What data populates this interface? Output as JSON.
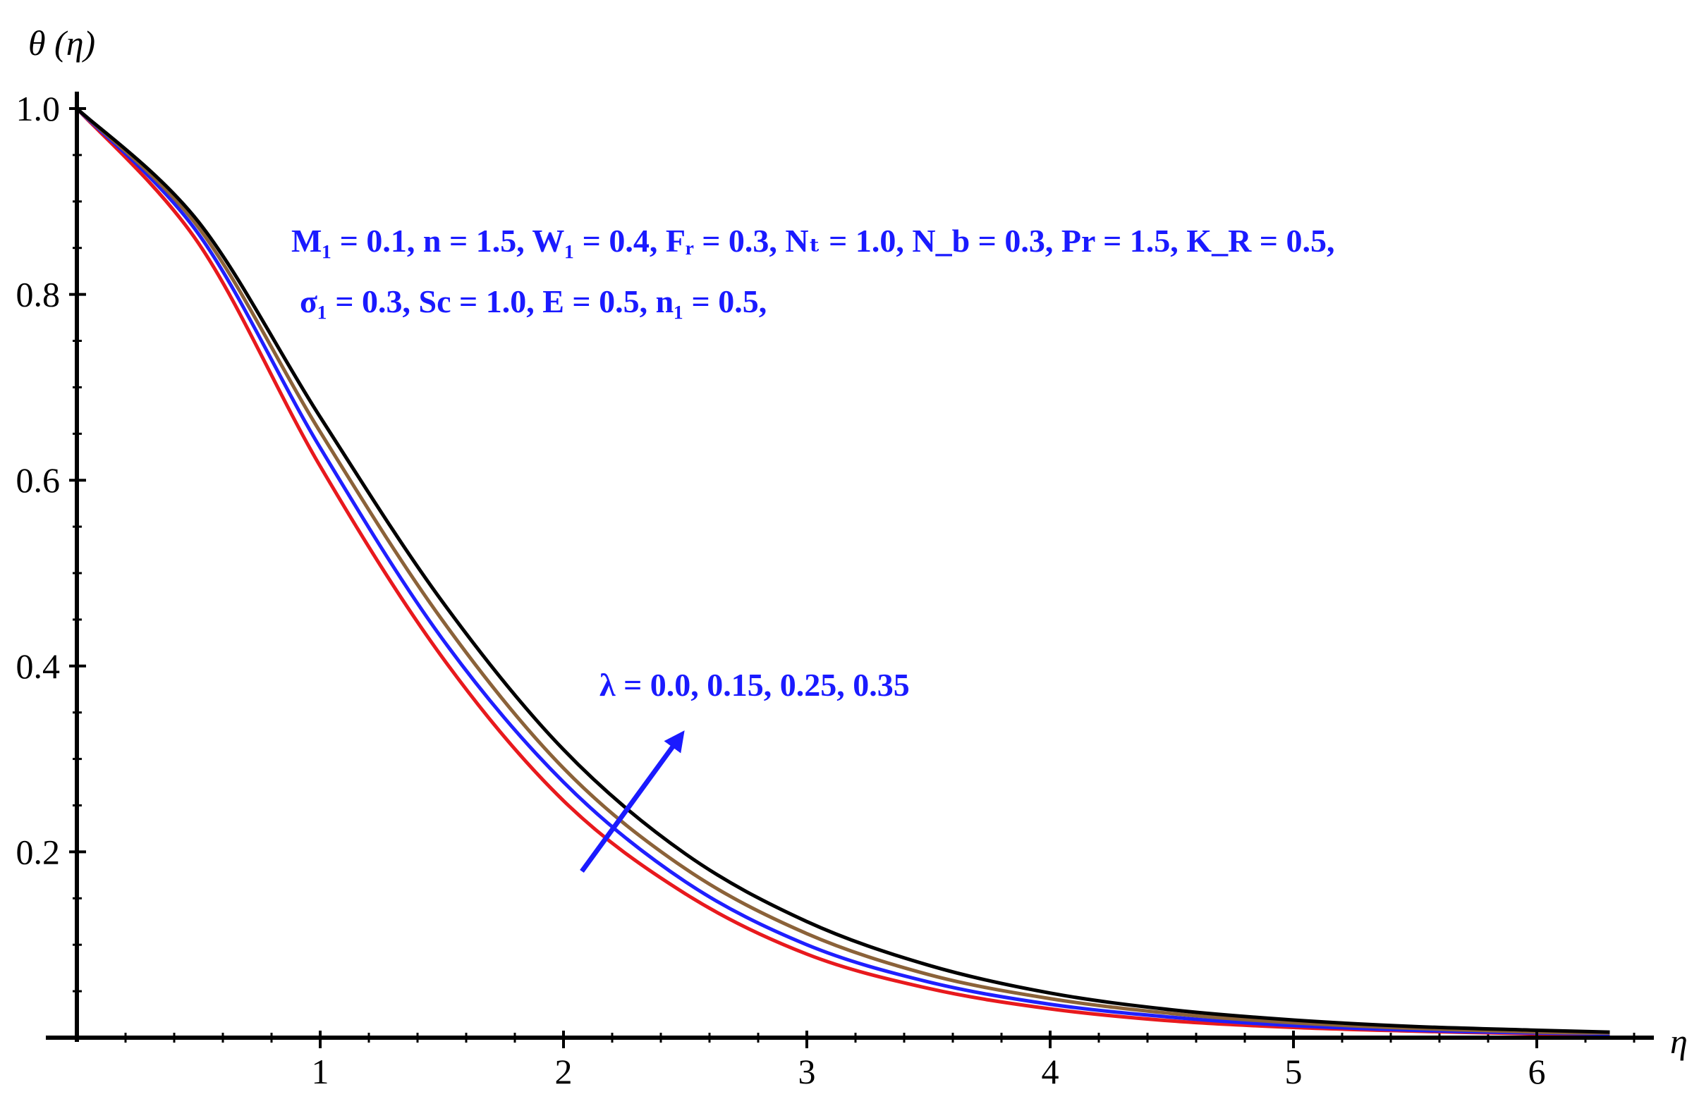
{
  "chart_data": {
    "type": "line",
    "title": "",
    "xlabel": "η",
    "ylabel": "θ (η)",
    "xlim": [
      0,
      6.45
    ],
    "ylim": [
      0,
      1.03
    ],
    "x_ticks": [
      {
        "value": 1,
        "label": "1"
      },
      {
        "value": 2,
        "label": "2"
      },
      {
        "value": 3,
        "label": "3"
      },
      {
        "value": 4,
        "label": "4"
      },
      {
        "value": 5,
        "label": "5"
      },
      {
        "value": 6,
        "label": "6"
      }
    ],
    "y_ticks": [
      {
        "value": 0.2,
        "label": "0.2"
      },
      {
        "value": 0.4,
        "label": "0.4"
      },
      {
        "value": 0.6,
        "label": "0.6"
      },
      {
        "value": 0.8,
        "label": "0.8"
      },
      {
        "value": 1.0,
        "label": "1.0"
      }
    ],
    "grid": false,
    "legend": "none",
    "series": [
      {
        "color": "#e8191d",
        "x": [
          0,
          0.5,
          1,
          1.5,
          2,
          2.5,
          3,
          3.5,
          4,
          4.5,
          5,
          5.5,
          6,
          6.3
        ],
        "y": [
          1.0,
          0.855,
          0.615,
          0.41,
          0.255,
          0.155,
          0.09,
          0.053,
          0.031,
          0.018,
          0.011,
          0.007,
          0.004,
          0.003
        ]
      },
      {
        "color": "#1f1fff",
        "x": [
          0,
          0.5,
          1,
          1.5,
          2,
          2.5,
          3,
          3.5,
          4,
          4.5,
          5,
          5.5,
          6,
          6.3
        ],
        "y": [
          1.0,
          0.865,
          0.635,
          0.43,
          0.275,
          0.168,
          0.1,
          0.06,
          0.036,
          0.022,
          0.013,
          0.008,
          0.005,
          0.004
        ]
      },
      {
        "color": "#8b6239",
        "x": [
          0,
          0.5,
          1,
          1.5,
          2,
          2.5,
          3,
          3.5,
          4,
          4.5,
          5,
          5.5,
          6,
          6.3
        ],
        "y": [
          1.0,
          0.872,
          0.652,
          0.45,
          0.29,
          0.182,
          0.112,
          0.068,
          0.042,
          0.026,
          0.016,
          0.01,
          0.006,
          0.005
        ]
      },
      {
        "color": "#000000",
        "x": [
          0,
          0.5,
          1,
          1.5,
          2,
          2.5,
          3,
          3.5,
          4,
          4.5,
          5,
          5.5,
          6,
          6.3
        ],
        "y": [
          1.0,
          0.878,
          0.668,
          0.47,
          0.31,
          0.198,
          0.125,
          0.078,
          0.048,
          0.03,
          0.019,
          0.012,
          0.008,
          0.006
        ]
      }
    ],
    "annotations": {
      "params_line1": "M₁ =  0.1, n = 1.5, W₁ =  0.4,  Fᵣ = 0.3, Nₜ = 1.0, N_b = 0.3, Pr = 1.5, K_R = 0.5,",
      "params_line2": "σ₁ = 0.3,  Sc = 1.0,  E = 0.5, n₁ = 0.5,",
      "lambda_label": "λ = 0.0, 0.15, 0.25, 0.35",
      "arrow_color": "#1a1aff"
    }
  }
}
